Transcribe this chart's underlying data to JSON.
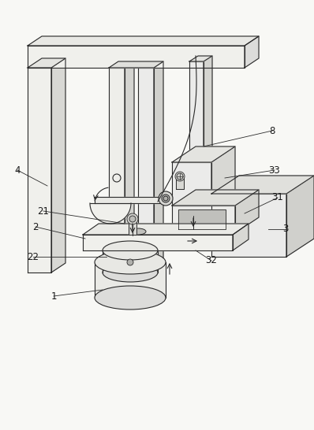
{
  "background_color": "#f8f8f5",
  "line_color": "#2a2a2a",
  "label_color": "#1a1a1a",
  "figsize": [
    3.98,
    5.46
  ],
  "dpi": 100
}
